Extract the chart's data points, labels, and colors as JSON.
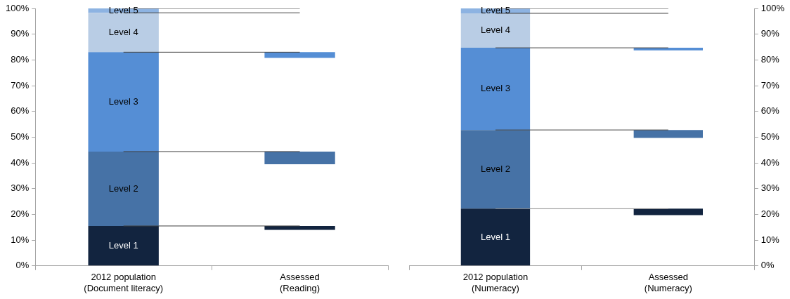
{
  "chart_data": [
    {
      "type": "bar",
      "categories": [
        "2012 population\n(Document literacy)",
        "Assessed\n(Reading)"
      ],
      "series": [
        {
          "name": "Level 1",
          "color": "#12243f",
          "values": [
            15.5,
            1.5
          ],
          "base": [
            0,
            14.0
          ]
        },
        {
          "name": "Level 2",
          "color": "#4672a6",
          "values": [
            28.9,
            4.9
          ],
          "base": [
            15.5,
            39.5
          ]
        },
        {
          "name": "Level 3",
          "color": "#558ed5",
          "values": [
            38.6,
            2.2
          ],
          "base": [
            44.4,
            80.8
          ]
        },
        {
          "name": "Level 4",
          "color": "#b9cde5",
          "values": [
            15.3,
            null
          ],
          "base": [
            83.0,
            null
          ]
        },
        {
          "name": "Level 5",
          "color": "#8db3e2",
          "values": [
            1.7,
            null
          ],
          "base": [
            98.3,
            null
          ]
        },
        {
          "type": "line",
          "color": "#404040",
          "values": [
            15.5,
            15.5
          ]
        },
        {
          "type": "line",
          "color": "#404040",
          "values": [
            44.4,
            44.4
          ]
        },
        {
          "type": "line",
          "color": "#404040",
          "values": [
            83.0,
            83.0
          ]
        },
        {
          "type": "line",
          "color": "#404040",
          "values": [
            98.3,
            98.3
          ]
        },
        {
          "type": "line",
          "color": "#404040",
          "values": [
            100,
            100
          ]
        }
      ],
      "ylim": [
        0,
        100
      ],
      "yticks": [
        {
          "value": 0,
          "label": "0%"
        },
        {
          "value": 10,
          "label": "10%"
        },
        {
          "value": 20,
          "label": "20%"
        },
        {
          "value": 30,
          "label": "30%"
        },
        {
          "value": 40,
          "label": "40%"
        },
        {
          "value": 50,
          "label": "50%"
        },
        {
          "value": 60,
          "label": "60%"
        },
        {
          "value": 70,
          "label": "70%"
        },
        {
          "value": 80,
          "label": "80%"
        },
        {
          "value": 90,
          "label": "90%"
        },
        {
          "value": 100,
          "label": "100%"
        }
      ],
      "grid": false,
      "legend": false
    },
    {
      "type": "bar",
      "categories": [
        "2012 population\n(Numeracy)",
        "Assessed\n(Numeracy)"
      ],
      "series": [
        {
          "name": "Level 1",
          "color": "#12243f",
          "values": [
            22.2,
            2.5
          ],
          "base": [
            0,
            19.7
          ],
          "axis": "y2"
        },
        {
          "name": "Level 2",
          "color": "#4672a6",
          "values": [
            30.6,
            3.1
          ],
          "base": [
            22.2,
            49.7
          ],
          "axis": "y2"
        },
        {
          "name": "Level 3",
          "color": "#558ed5",
          "values": [
            31.9,
            1.0
          ],
          "base": [
            52.8,
            83.7
          ],
          "axis": "y2"
        },
        {
          "name": "Level 4",
          "color": "#b9cde5",
          "values": [
            13.4,
            null
          ],
          "base": [
            84.7,
            null
          ],
          "axis": "y2"
        },
        {
          "name": "Level 5",
          "color": "#8db3e2",
          "values": [
            1.9,
            null
          ],
          "base": [
            98.1,
            null
          ],
          "axis": "y2"
        },
        {
          "type": "line",
          "color": "#8c8c8c",
          "values": [
            22.2,
            22.2
          ],
          "axis": "y2"
        },
        {
          "type": "line",
          "color": "#404040",
          "values": [
            52.8,
            52.8
          ],
          "axis": "y2"
        },
        {
          "type": "line",
          "color": "#404040",
          "values": [
            84.7,
            84.7
          ],
          "axis": "y2"
        },
        {
          "type": "line",
          "color": "#404040",
          "values": [
            98.1,
            98.1
          ],
          "axis": "y2"
        },
        {
          "type": "line",
          "color": "#404040",
          "values": [
            100,
            100
          ],
          "axis": "y2"
        }
      ],
      "y2lim": [
        0,
        100
      ],
      "y2ticks": [
        {
          "value": 0,
          "label": "0%"
        },
        {
          "value": 10,
          "label": "10%"
        },
        {
          "value": 20,
          "label": "20%"
        },
        {
          "value": 30,
          "label": "30%"
        },
        {
          "value": 40,
          "label": "40%"
        },
        {
          "value": 50,
          "label": "50%"
        },
        {
          "value": 60,
          "label": "60%"
        },
        {
          "value": 70,
          "label": "70%"
        },
        {
          "value": 80,
          "label": "80%"
        },
        {
          "value": 90,
          "label": "90%"
        },
        {
          "value": 100,
          "label": "100%"
        }
      ],
      "grid": false,
      "legend": false
    }
  ]
}
